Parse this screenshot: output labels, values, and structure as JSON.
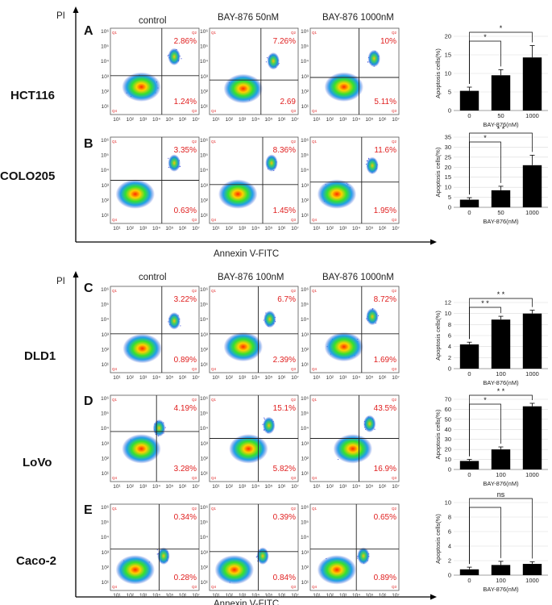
{
  "panels": [
    {
      "letter": "A",
      "cell_line": "HCT116",
      "conditions": [
        "control",
        "BAY-876 50nM",
        "BAY-876 1000nM"
      ],
      "plots": [
        {
          "q2": "2.86%",
          "q3": "1.24%"
        },
        {
          "q2": "7.26%",
          "q3": "2.69"
        },
        {
          "q2": "10%",
          "q3": "5.11%"
        }
      ]
    },
    {
      "letter": "B",
      "cell_line": "COLO205",
      "plots": [
        {
          "q2": "3.35%",
          "q3": "0.63%"
        },
        {
          "q2": "8.36%",
          "q3": "1.45%"
        },
        {
          "q2": "11.6%",
          "q3": "1.95%"
        }
      ]
    },
    {
      "letter": "C",
      "cell_line": "DLD1",
      "conditions": [
        "control",
        "BAY-876 100nM",
        "BAY-876 1000nM"
      ],
      "plots": [
        {
          "q2": "3.22%",
          "q3": "0.89%"
        },
        {
          "q2": "6.7%",
          "q3": "2.39%"
        },
        {
          "q2": "8.72%",
          "q3": "1.69%"
        }
      ]
    },
    {
      "letter": "D",
      "cell_line": "LoVo",
      "plots": [
        {
          "q2": "4.19%",
          "q3": "3.28%"
        },
        {
          "q2": "15.1%",
          "q3": "5.82%"
        },
        {
          "q2": "43.5%",
          "q3": "16.9%"
        }
      ]
    },
    {
      "letter": "E",
      "cell_line": "Caco-2",
      "plots": [
        {
          "q2": "0.34%",
          "q3": "0.28%"
        },
        {
          "q2": "0.39%",
          "q3": "0.84%"
        },
        {
          "q2": "0.65%",
          "q3": "0.89%"
        }
      ]
    }
  ],
  "axis": {
    "y_label": "PI",
    "x_label": "Annexin V-FITC"
  },
  "quadrant_labels": [
    "Q1",
    "Q2",
    "Q3",
    "Q4"
  ],
  "chart_data": [
    {
      "type": "bar",
      "panel": "HCT116",
      "categories": [
        "0",
        "50",
        "1000"
      ],
      "values": [
        5.3,
        9.5,
        14.3
      ],
      "errors": [
        1.0,
        1.5,
        3.2
      ],
      "ylim": [
        0,
        20
      ],
      "yticks": [
        0,
        5,
        10,
        15,
        20
      ],
      "ylabel": "Apoptosis cells(%)",
      "xlabel": "BAY-876(nM)",
      "significance": [
        {
          "from": 0,
          "to": 1,
          "label": "*"
        },
        {
          "from": 0,
          "to": 2,
          "label": "*"
        }
      ]
    },
    {
      "type": "bar",
      "panel": "COLO205",
      "categories": [
        "0",
        "50",
        "1000"
      ],
      "values": [
        3.8,
        8.5,
        21
      ],
      "errors": [
        1.0,
        2.0,
        5.0
      ],
      "ylim": [
        0,
        35
      ],
      "yticks": [
        0,
        5,
        10,
        15,
        20,
        25,
        30,
        35
      ],
      "ylabel": "Apoptosis cells(%)",
      "xlabel": "BAY-876(nM)",
      "significance": [
        {
          "from": 0,
          "to": 1,
          "label": "*"
        },
        {
          "from": 0,
          "to": 2,
          "label": "* *"
        }
      ]
    },
    {
      "type": "bar",
      "panel": "DLD1",
      "categories": [
        "0",
        "100",
        "1000"
      ],
      "values": [
        4.4,
        8.9,
        10
      ],
      "errors": [
        0.4,
        0.6,
        0.6
      ],
      "ylim": [
        0,
        12
      ],
      "yticks": [
        0,
        2,
        4,
        6,
        8,
        10,
        12
      ],
      "ylabel": "Apoptosis cells(%)",
      "xlabel": "BAY-876(nM)",
      "significance": [
        {
          "from": 0,
          "to": 1,
          "label": "* *"
        },
        {
          "from": 0,
          "to": 2,
          "label": "* *"
        }
      ]
    },
    {
      "type": "bar",
      "panel": "LoVo",
      "categories": [
        "0",
        "100",
        "1000"
      ],
      "values": [
        8.5,
        20,
        63
      ],
      "errors": [
        1.5,
        2.5,
        3.0
      ],
      "ylim": [
        0,
        70
      ],
      "yticks": [
        0,
        10,
        20,
        30,
        40,
        50,
        60,
        70
      ],
      "ylabel": "Apoptosis cells(%)",
      "xlabel": "BAY-876(nM)",
      "significance": [
        {
          "from": 0,
          "to": 1,
          "label": "*"
        },
        {
          "from": 0,
          "to": 2,
          "label": "* *"
        }
      ]
    },
    {
      "type": "bar",
      "panel": "Caco-2",
      "categories": [
        "0",
        "100",
        "1000"
      ],
      "values": [
        0.8,
        1.4,
        1.55
      ],
      "errors": [
        0.3,
        0.5,
        0.3
      ],
      "ylim": [
        0,
        10
      ],
      "yticks": [
        0,
        2,
        4,
        6,
        8,
        10
      ],
      "ylabel": "Apoptosis cells(%)",
      "xlabel": "BAY-876(nM)",
      "significance": [
        {
          "from": 0,
          "to": 1,
          "label": ""
        },
        {
          "from": 0,
          "to": 2,
          "label": "ns"
        }
      ]
    }
  ]
}
